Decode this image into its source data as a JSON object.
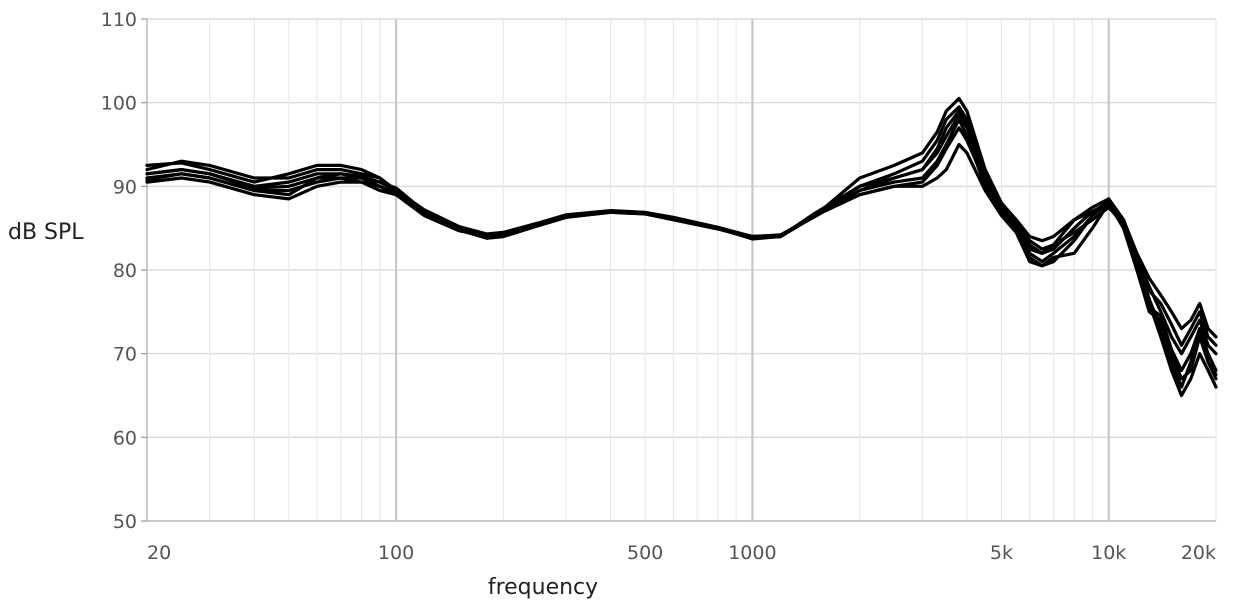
{
  "chart_data": {
    "type": "line",
    "title": "",
    "xlabel": "frequency",
    "ylabel": "dB SPL",
    "x_scale": "log",
    "xlim": [
      20,
      20000
    ],
    "ylim": [
      50,
      110
    ],
    "grid": true,
    "legend": "none",
    "line_color": "#000000",
    "y_ticks": [
      "50",
      "60",
      "70",
      "80",
      "90",
      "100",
      "110"
    ],
    "x_ticks": [
      {
        "value": 20,
        "label": "20"
      },
      {
        "value": 100,
        "label": "100"
      },
      {
        "value": 500,
        "label": "500"
      },
      {
        "value": 1000,
        "label": "1000"
      },
      {
        "value": 5000,
        "label": "5k"
      },
      {
        "value": 10000,
        "label": "10k"
      },
      {
        "value": 20000,
        "label": "20k"
      }
    ],
    "x": [
      20,
      25,
      30,
      40,
      50,
      60,
      70,
      80,
      90,
      100,
      120,
      150,
      180,
      200,
      250,
      300,
      400,
      500,
      600,
      800,
      1000,
      1200,
      1500,
      2000,
      2500,
      3000,
      3300,
      3500,
      3800,
      4000,
      4500,
      5000,
      5500,
      6000,
      6500,
      7000,
      8000,
      9000,
      10000,
      11000,
      12000,
      13000,
      14000,
      15000,
      16000,
      17000,
      18000,
      19000,
      20000
    ],
    "series": [
      {
        "values": [
          92.5,
          92.8,
          92.0,
          90.5,
          91.5,
          92.5,
          92.5,
          92.0,
          91.0,
          89.5,
          87.0,
          85.0,
          84.0,
          84.2,
          85.5,
          86.5,
          87.0,
          86.8,
          86.2,
          85.0,
          84.0,
          84.0,
          86.5,
          91.0,
          92.5,
          94.0,
          96.5,
          99.0,
          100.5,
          99.0,
          92.0,
          88.0,
          86.0,
          84.0,
          83.5,
          84.0,
          86.0,
          87.5,
          88.5,
          86.0,
          81.0,
          76.0,
          72.0,
          68.0,
          65.0,
          67.0,
          70.0,
          68.0,
          66.0
        ]
      },
      {
        "values": [
          91.5,
          92.0,
          91.5,
          90.0,
          90.5,
          91.5,
          91.5,
          91.0,
          90.5,
          89.5,
          87.0,
          85.0,
          84.2,
          84.3,
          85.5,
          86.5,
          87.0,
          86.8,
          86.2,
          85.0,
          84.0,
          84.0,
          86.5,
          89.5,
          91.0,
          92.0,
          94.0,
          96.0,
          98.5,
          97.0,
          91.0,
          87.5,
          85.5,
          83.0,
          82.0,
          82.5,
          85.0,
          87.0,
          88.0,
          85.5,
          80.0,
          75.0,
          74.0,
          70.0,
          67.0,
          68.0,
          72.0,
          69.0,
          67.0
        ]
      },
      {
        "values": [
          91.0,
          91.5,
          91.0,
          89.5,
          89.0,
          91.0,
          91.0,
          91.0,
          90.0,
          89.0,
          86.5,
          84.7,
          84.0,
          84.2,
          85.4,
          86.4,
          87.0,
          86.8,
          86.1,
          85.0,
          84.0,
          84.2,
          86.5,
          89.0,
          90.0,
          90.5,
          92.5,
          94.5,
          97.0,
          95.5,
          90.5,
          87.0,
          85.0,
          81.5,
          80.5,
          81.0,
          83.5,
          86.5,
          88.5,
          86.0,
          81.5,
          78.0,
          75.0,
          72.0,
          70.0,
          72.0,
          74.0,
          71.0,
          70.0
        ]
      },
      {
        "values": [
          90.5,
          91.0,
          90.5,
          89.0,
          88.5,
          90.0,
          90.5,
          90.5,
          89.5,
          89.0,
          86.8,
          84.8,
          83.8,
          84.0,
          85.3,
          86.3,
          86.9,
          86.7,
          86.1,
          85.0,
          83.7,
          84.0,
          86.5,
          89.0,
          90.0,
          90.0,
          91.0,
          92.0,
          95.0,
          94.0,
          89.5,
          86.5,
          84.5,
          81.0,
          80.5,
          81.5,
          82.0,
          85.0,
          88.0,
          85.5,
          81.0,
          77.5,
          76.0,
          73.5,
          71.0,
          73.0,
          75.0,
          72.0,
          71.0
        ]
      },
      {
        "values": [
          92.0,
          93.0,
          92.5,
          91.0,
          91.0,
          92.0,
          92.0,
          91.5,
          91.0,
          89.5,
          87.2,
          85.2,
          84.3,
          84.5,
          85.6,
          86.6,
          87.1,
          86.9,
          86.3,
          85.1,
          84.0,
          84.0,
          86.8,
          90.0,
          91.5,
          93.0,
          95.5,
          98.0,
          99.5,
          98.0,
          91.5,
          87.8,
          86.0,
          83.5,
          82.5,
          83.0,
          84.5,
          86.0,
          87.5,
          85.5,
          81.0,
          76.5,
          73.0,
          69.0,
          66.0,
          69.0,
          73.0,
          70.0,
          68.0
        ]
      },
      {
        "values": [
          90.8,
          91.5,
          91.0,
          89.5,
          89.5,
          90.5,
          91.0,
          90.5,
          90.0,
          89.2,
          86.7,
          84.8,
          83.8,
          84.0,
          85.3,
          86.3,
          86.9,
          86.7,
          86.0,
          84.9,
          83.8,
          84.1,
          86.4,
          89.5,
          90.5,
          91.0,
          93.0,
          95.0,
          98.0,
          96.0,
          90.0,
          87.0,
          85.0,
          82.0,
          81.0,
          82.0,
          84.0,
          86.5,
          88.0,
          86.0,
          82.0,
          79.0,
          77.0,
          75.0,
          73.0,
          74.0,
          76.0,
          73.0,
          72.0
        ]
      },
      {
        "values": [
          91.5,
          92.0,
          91.5,
          89.8,
          90.0,
          91.0,
          91.5,
          91.2,
          90.5,
          89.8,
          87.0,
          85.0,
          84.1,
          84.3,
          85.5,
          86.5,
          87.0,
          86.8,
          86.2,
          85.0,
          83.9,
          84.0,
          86.6,
          90.0,
          91.0,
          92.0,
          94.5,
          97.0,
          99.0,
          97.5,
          91.0,
          87.5,
          85.5,
          82.5,
          82.0,
          83.0,
          86.0,
          87.0,
          88.0,
          85.0,
          80.0,
          75.5,
          74.5,
          70.5,
          68.0,
          70.0,
          73.0,
          69.0,
          67.5
        ]
      }
    ]
  }
}
